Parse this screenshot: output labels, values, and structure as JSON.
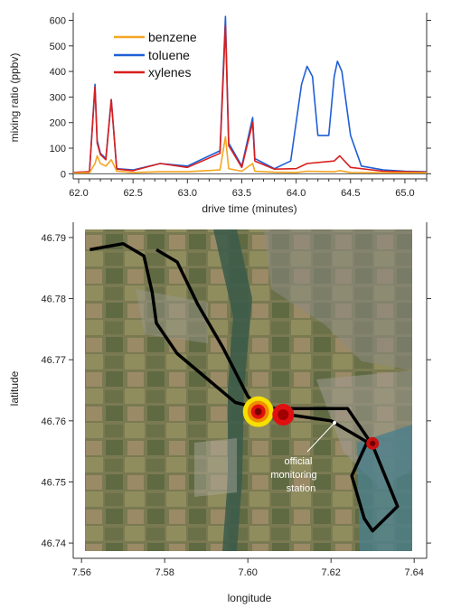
{
  "chart_data": [
    {
      "type": "line",
      "xlabel": "drive time (minutes)",
      "ylabel": "mixing ratio (ppbv)",
      "xlim": [
        61.95,
        65.2
      ],
      "ylim": [
        -20,
        630
      ],
      "x_ticks": [
        "62.0",
        "62.5",
        "63.0",
        "63.5",
        "64.0",
        "64.5",
        "65.0"
      ],
      "y_ticks": [
        "0",
        "100",
        "200",
        "300",
        "400",
        "500",
        "600"
      ],
      "legend_position": "top-left",
      "series": [
        {
          "name": "benzene",
          "color": "#f5a623",
          "points": [
            [
              61.95,
              3
            ],
            [
              62.1,
              4
            ],
            [
              62.15,
              40
            ],
            [
              62.17,
              70
            ],
            [
              62.2,
              40
            ],
            [
              62.25,
              30
            ],
            [
              62.3,
              55
            ],
            [
              62.35,
              10
            ],
            [
              62.5,
              5
            ],
            [
              62.75,
              8
            ],
            [
              63.0,
              8
            ],
            [
              63.3,
              15
            ],
            [
              63.35,
              145
            ],
            [
              63.38,
              20
            ],
            [
              63.5,
              10
            ],
            [
              63.6,
              40
            ],
            [
              63.62,
              10
            ],
            [
              63.8,
              6
            ],
            [
              64.0,
              5
            ],
            [
              64.1,
              10
            ],
            [
              64.35,
              8
            ],
            [
              64.4,
              12
            ],
            [
              64.5,
              5
            ],
            [
              65.0,
              4
            ],
            [
              65.2,
              4
            ]
          ]
        },
        {
          "name": "toluene",
          "color": "#1f5fd6",
          "points": [
            [
              61.95,
              5
            ],
            [
              62.1,
              8
            ],
            [
              62.15,
              350
            ],
            [
              62.17,
              130
            ],
            [
              62.2,
              80
            ],
            [
              62.25,
              60
            ],
            [
              62.3,
              290
            ],
            [
              62.35,
              20
            ],
            [
              62.5,
              15
            ],
            [
              62.75,
              40
            ],
            [
              63.0,
              30
            ],
            [
              63.3,
              90
            ],
            [
              63.35,
              615
            ],
            [
              63.38,
              120
            ],
            [
              63.5,
              30
            ],
            [
              63.6,
              220
            ],
            [
              63.62,
              60
            ],
            [
              63.8,
              20
            ],
            [
              63.95,
              50
            ],
            [
              64.0,
              200
            ],
            [
              64.05,
              350
            ],
            [
              64.1,
              420
            ],
            [
              64.15,
              380
            ],
            [
              64.2,
              150
            ],
            [
              64.3,
              150
            ],
            [
              64.35,
              380
            ],
            [
              64.38,
              440
            ],
            [
              64.42,
              400
            ],
            [
              64.5,
              150
            ],
            [
              64.6,
              30
            ],
            [
              64.8,
              15
            ],
            [
              65.0,
              10
            ],
            [
              65.2,
              8
            ]
          ]
        },
        {
          "name": "xylenes",
          "color": "#d81e1e",
          "points": [
            [
              61.95,
              5
            ],
            [
              62.1,
              8
            ],
            [
              62.15,
              340
            ],
            [
              62.17,
              120
            ],
            [
              62.2,
              75
            ],
            [
              62.25,
              55
            ],
            [
              62.3,
              290
            ],
            [
              62.35,
              18
            ],
            [
              62.5,
              12
            ],
            [
              62.75,
              40
            ],
            [
              63.0,
              25
            ],
            [
              63.3,
              80
            ],
            [
              63.35,
              580
            ],
            [
              63.38,
              110
            ],
            [
              63.5,
              25
            ],
            [
              63.6,
              200
            ],
            [
              63.62,
              50
            ],
            [
              63.8,
              18
            ],
            [
              64.0,
              20
            ],
            [
              64.1,
              40
            ],
            [
              64.35,
              50
            ],
            [
              64.4,
              70
            ],
            [
              64.5,
              25
            ],
            [
              64.8,
              10
            ],
            [
              65.0,
              8
            ],
            [
              65.2,
              6
            ]
          ]
        }
      ]
    },
    {
      "type": "scatter",
      "xlabel": "longitude",
      "ylabel": "latitude",
      "xlim": [
        7.558,
        7.643
      ],
      "ylim": [
        46.7375,
        46.7925
      ],
      "x_ticks": [
        "7.56",
        "7.58",
        "7.60",
        "7.62",
        "7.64"
      ],
      "y_ticks": [
        "46.74",
        "46.75",
        "46.76",
        "46.77",
        "46.78",
        "46.79"
      ],
      "background": "satellite image",
      "annotation": {
        "lines": [
          "official",
          "monitoring",
          "station"
        ]
      },
      "track": [
        [
          7.562,
          46.788
        ],
        [
          7.57,
          46.789
        ],
        [
          7.575,
          46.787
        ],
        [
          7.577,
          46.781
        ],
        [
          7.578,
          46.776
        ],
        [
          7.583,
          46.771
        ],
        [
          7.59,
          46.767
        ],
        [
          7.597,
          46.763
        ],
        [
          7.603,
          46.762
        ],
        [
          7.61,
          46.761
        ],
        [
          7.62,
          46.76
        ],
        [
          7.625,
          46.758
        ],
        [
          7.63,
          46.756
        ],
        [
          7.636,
          46.746
        ],
        [
          7.63,
          46.742
        ],
        [
          7.628,
          46.744
        ],
        [
          7.625,
          46.751
        ],
        [
          7.629,
          46.757
        ],
        [
          7.624,
          46.762
        ],
        [
          7.612,
          46.762
        ],
        [
          7.603,
          46.762
        ],
        [
          7.6,
          46.764
        ],
        [
          7.594,
          46.772
        ],
        [
          7.588,
          46.779
        ],
        [
          7.583,
          46.786
        ],
        [
          7.578,
          46.788
        ]
      ],
      "hotspots": [
        {
          "lon": 7.6025,
          "lat": 46.7615,
          "size": "large",
          "color": "#f5e000"
        },
        {
          "lon": 7.6085,
          "lat": 46.761,
          "size": "medium",
          "color": "#e01010"
        },
        {
          "lon": 7.63,
          "lat": 46.7563,
          "size": "small",
          "color": "#c81010"
        }
      ]
    }
  ]
}
